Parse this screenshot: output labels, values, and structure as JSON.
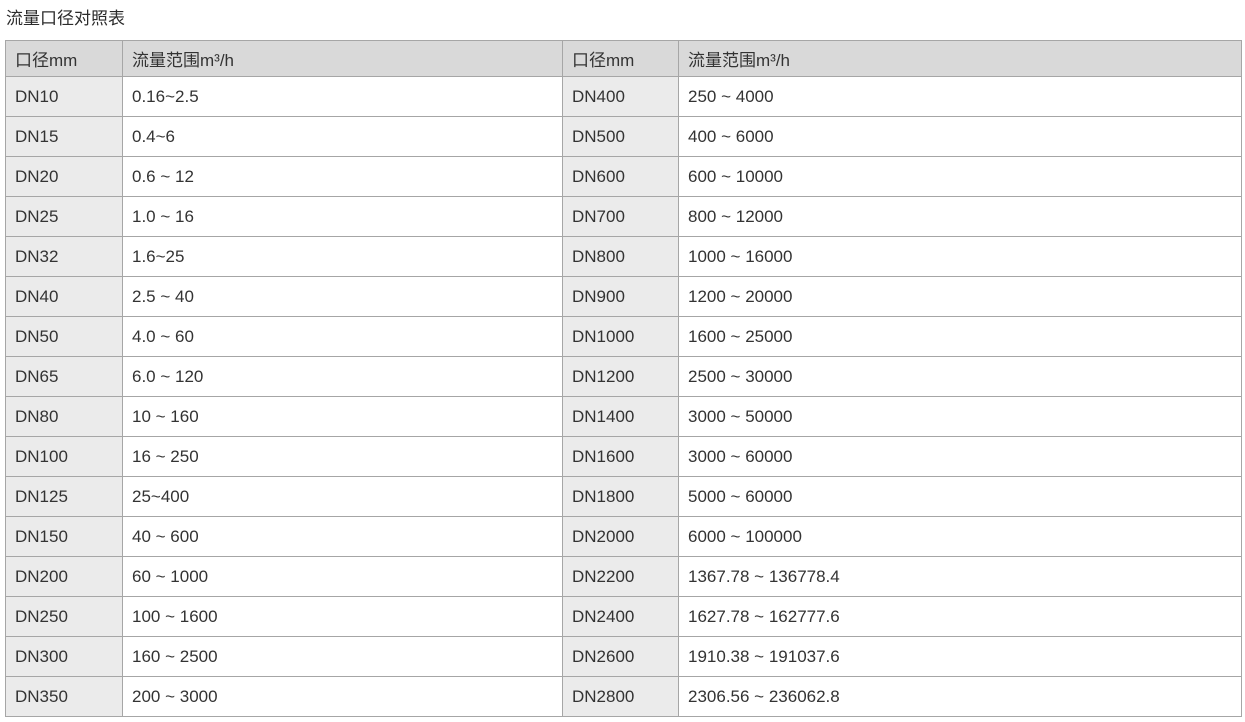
{
  "page_title": "流量口径对照表",
  "table": {
    "headers": [
      "口径mm",
      "流量范围m³/h",
      "口径mm",
      "流量范围m³/h"
    ],
    "rows": [
      [
        "DN10",
        "0.16~2.5",
        "DN400",
        "250 ~ 4000"
      ],
      [
        "DN15",
        "0.4~6",
        "DN500",
        "400 ~ 6000"
      ],
      [
        "DN20",
        "0.6 ~ 12",
        "DN600",
        "600 ~ 10000"
      ],
      [
        "DN25",
        "1.0 ~ 16",
        "DN700",
        "800 ~ 12000"
      ],
      [
        "DN32",
        "1.6~25",
        "DN800",
        "1000 ~ 16000"
      ],
      [
        "DN40",
        "2.5 ~ 40",
        "DN900",
        "1200 ~ 20000"
      ],
      [
        "DN50",
        "4.0 ~ 60",
        "DN1000",
        "1600 ~ 25000"
      ],
      [
        "DN65",
        "6.0 ~ 120",
        "DN1200",
        "2500 ~ 30000"
      ],
      [
        "DN80",
        "10 ~ 160",
        "DN1400",
        "3000 ~ 50000"
      ],
      [
        "DN100",
        "16 ~ 250",
        "DN1600",
        "3000 ~ 60000"
      ],
      [
        "DN125",
        "25~400",
        "DN1800",
        "5000 ~ 60000"
      ],
      [
        "DN150",
        "40 ~ 600",
        "DN2000",
        "6000 ~ 100000"
      ],
      [
        "DN200",
        "60 ~ 1000",
        "DN2200",
        "1367.78 ~ 136778.4"
      ],
      [
        "DN250",
        "100 ~ 1600",
        "DN2400",
        "1627.78 ~ 162777.6"
      ],
      [
        "DN300",
        "160 ~ 2500",
        "DN2600",
        "1910.38 ~ 191037.6"
      ],
      [
        "DN350",
        "200 ~ 3000",
        "DN2800",
        "2306.56 ~ 236062.8"
      ]
    ],
    "colors": {
      "header_bg": "#d9d9d9",
      "dn_cell_bg": "#ebebeb",
      "border": "#a6a6a6",
      "text": "#333333"
    }
  }
}
